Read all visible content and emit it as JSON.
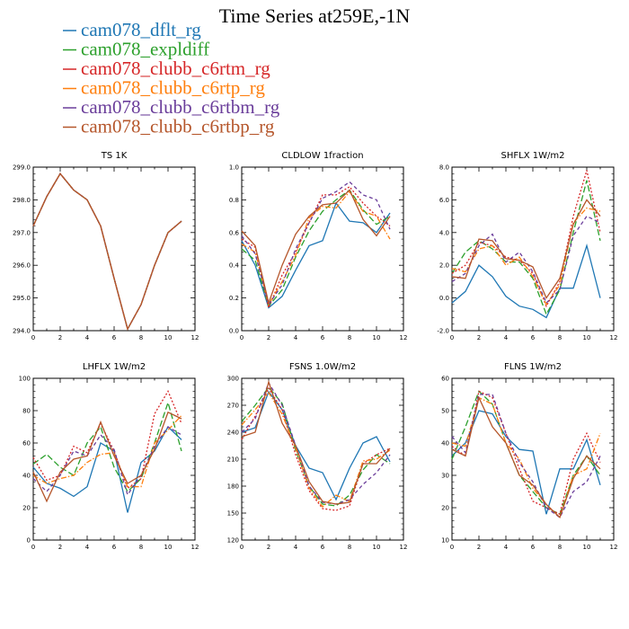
{
  "figure": {
    "title": "Time Series at259E,-1N"
  },
  "legend": [
    {
      "name": "cam078_dflt_rg",
      "color": "#1f77b4",
      "dash": "solid"
    },
    {
      "name": "cam078_expldiff",
      "color": "#2ca02c",
      "dash": "longdash"
    },
    {
      "name": "cam078_clubb_c6rtm_rg",
      "color": "#d62728",
      "dash": "dot"
    },
    {
      "name": "cam078_clubb_c6rtp_rg",
      "color": "#ff7f0e",
      "dash": "dashdot"
    },
    {
      "name": "cam078_clubb_c6rtbm_rg",
      "color": "#6a3d9a",
      "dash": "shortdash"
    },
    {
      "name": "cam078_clubb_c6rtbp_rg",
      "color": "#b5562b",
      "dash": "solid"
    }
  ],
  "chart_data": [
    {
      "type": "line",
      "title": "TS   1K",
      "x": [
        0,
        1,
        2,
        3,
        4,
        5,
        6,
        7,
        8,
        9,
        10,
        11
      ],
      "xlim": [
        0,
        12
      ],
      "xticks": [
        "0",
        "2",
        "4",
        "6",
        "8",
        "10",
        "12"
      ],
      "ylim": [
        294.0,
        299.0
      ],
      "yticks": [
        "294.0",
        "295.0",
        "296.0",
        "297.0",
        "298.0",
        "299.0"
      ],
      "series": [
        {
          "name": "cam078_dflt_rg",
          "values": [
            297.2,
            298.1,
            298.8,
            298.3,
            298.0,
            297.2,
            295.6,
            294.05,
            294.8,
            296.0,
            297.0,
            297.35
          ]
        },
        {
          "name": "cam078_expldiff",
          "values": [
            297.2,
            298.1,
            298.8,
            298.3,
            298.0,
            297.2,
            295.6,
            294.05,
            294.8,
            296.0,
            297.0,
            297.35
          ]
        },
        {
          "name": "cam078_clubb_c6rtm_rg",
          "values": [
            297.2,
            298.1,
            298.8,
            298.3,
            298.0,
            297.2,
            295.6,
            294.05,
            294.8,
            296.0,
            297.0,
            297.35
          ]
        },
        {
          "name": "cam078_clubb_c6rtp_rg",
          "values": [
            297.2,
            298.1,
            298.8,
            298.3,
            298.0,
            297.2,
            295.6,
            294.05,
            294.8,
            296.0,
            297.0,
            297.35
          ]
        },
        {
          "name": "cam078_clubb_c6rtbm_rg",
          "values": [
            297.2,
            298.1,
            298.8,
            298.3,
            298.0,
            297.2,
            295.6,
            294.05,
            294.8,
            296.0,
            297.0,
            297.35
          ]
        },
        {
          "name": "cam078_clubb_c6rtbp_rg",
          "values": [
            297.2,
            298.1,
            298.8,
            298.3,
            298.0,
            297.2,
            295.6,
            294.05,
            294.8,
            296.0,
            297.0,
            297.35
          ]
        }
      ]
    },
    {
      "type": "line",
      "title": "CLDLOW   1fraction",
      "x": [
        0,
        1,
        2,
        3,
        4,
        5,
        6,
        7,
        8,
        9,
        10,
        11
      ],
      "xlim": [
        0,
        12
      ],
      "xticks": [
        "0",
        "2",
        "4",
        "6",
        "8",
        "10",
        "12"
      ],
      "ylim": [
        0.0,
        1.0
      ],
      "yticks": [
        "0.0",
        "0.2",
        "0.4",
        "0.6",
        "0.8",
        "1.0"
      ],
      "series": [
        {
          "name": "cam078_dflt_rg",
          "values": [
            0.55,
            0.4,
            0.14,
            0.21,
            0.37,
            0.52,
            0.55,
            0.78,
            0.67,
            0.66,
            0.6,
            0.72
          ]
        },
        {
          "name": "cam078_expldiff",
          "values": [
            0.5,
            0.43,
            0.15,
            0.25,
            0.45,
            0.61,
            0.73,
            0.8,
            0.86,
            0.74,
            0.65,
            0.7
          ]
        },
        {
          "name": "cam078_clubb_c6rtm_rg",
          "values": [
            0.56,
            0.51,
            0.14,
            0.34,
            0.48,
            0.66,
            0.83,
            0.83,
            0.88,
            0.78,
            0.7,
            0.64
          ]
        },
        {
          "name": "cam078_clubb_c6rtp_rg",
          "values": [
            0.53,
            0.48,
            0.16,
            0.3,
            0.46,
            0.69,
            0.76,
            0.75,
            0.85,
            0.73,
            0.7,
            0.56
          ]
        },
        {
          "name": "cam078_clubb_c6rtbm_rg",
          "values": [
            0.58,
            0.47,
            0.16,
            0.28,
            0.5,
            0.66,
            0.81,
            0.85,
            0.91,
            0.83,
            0.8,
            0.62
          ]
        },
        {
          "name": "cam078_clubb_c6rtbp_rg",
          "values": [
            0.61,
            0.52,
            0.17,
            0.4,
            0.59,
            0.7,
            0.77,
            0.78,
            0.86,
            0.68,
            0.58,
            0.7
          ]
        }
      ]
    },
    {
      "type": "line",
      "title": "SHFLX   1W/m2",
      "x": [
        0,
        1,
        2,
        3,
        4,
        5,
        6,
        7,
        8,
        9,
        10,
        11
      ],
      "xlim": [
        0,
        12
      ],
      "xticks": [
        "0",
        "2",
        "4",
        "6",
        "8",
        "10",
        "12"
      ],
      "ylim": [
        -2.0,
        8.0
      ],
      "yticks": [
        "-2.0",
        "0.0",
        "2.0",
        "4.0",
        "6.0",
        "8.0"
      ],
      "series": [
        {
          "name": "cam078_dflt_rg",
          "values": [
            -0.3,
            0.4,
            2.0,
            1.3,
            0.1,
            -0.5,
            -0.7,
            -1.2,
            0.6,
            0.6,
            3.2,
            0.0
          ]
        },
        {
          "name": "cam078_expldiff",
          "values": [
            1.5,
            2.8,
            3.5,
            3.0,
            2.2,
            2.2,
            1.2,
            -1.0,
            0.5,
            4.0,
            7.2,
            3.5
          ]
        },
        {
          "name": "cam078_clubb_c6rtm_rg",
          "values": [
            1.5,
            2.0,
            3.4,
            3.2,
            2.5,
            2.3,
            1.5,
            -0.5,
            1.0,
            5.0,
            7.8,
            4.0
          ]
        },
        {
          "name": "cam078_clubb_c6rtp_rg",
          "values": [
            1.8,
            1.6,
            3.0,
            3.2,
            2.0,
            2.5,
            1.3,
            -0.4,
            0.8,
            4.6,
            5.5,
            5.3
          ]
        },
        {
          "name": "cam078_clubb_c6rtbm_rg",
          "values": [
            1.0,
            1.5,
            3.2,
            3.9,
            2.2,
            2.8,
            1.6,
            -0.3,
            0.5,
            3.8,
            5.0,
            4.6
          ]
        },
        {
          "name": "cam078_clubb_c6rtbp_rg",
          "values": [
            1.3,
            1.2,
            3.6,
            3.5,
            2.4,
            2.3,
            1.9,
            0.0,
            1.2,
            4.5,
            6.0,
            5.0
          ]
        }
      ]
    },
    {
      "type": "line",
      "title": "LHFLX   1W/m2",
      "x": [
        0,
        1,
        2,
        3,
        4,
        5,
        6,
        7,
        8,
        9,
        10,
        11
      ],
      "xlim": [
        0,
        12
      ],
      "xticks": [
        "0",
        "2",
        "4",
        "6",
        "8",
        "10",
        "12"
      ],
      "ylim": [
        0,
        100
      ],
      "yticks": [
        "0",
        "20",
        "40",
        "60",
        "80",
        "100"
      ],
      "series": [
        {
          "name": "cam078_dflt_rg",
          "values": [
            45,
            35,
            32,
            27,
            33,
            60,
            55,
            17,
            48,
            55,
            70,
            62
          ]
        },
        {
          "name": "cam078_expldiff",
          "values": [
            47,
            53,
            45,
            40,
            60,
            70,
            45,
            30,
            38,
            60,
            85,
            55
          ]
        },
        {
          "name": "cam078_clubb_c6rtm_rg",
          "values": [
            51,
            37,
            40,
            58,
            54,
            72,
            55,
            32,
            38,
            78,
            92,
            72
          ]
        },
        {
          "name": "cam078_clubb_c6rtp_rg",
          "values": [
            40,
            35,
            38,
            40,
            48,
            53,
            54,
            33,
            33,
            60,
            68,
            77
          ]
        },
        {
          "name": "cam078_clubb_c6rtbm_rg",
          "values": [
            38,
            30,
            40,
            55,
            52,
            65,
            56,
            28,
            40,
            58,
            70,
            65
          ]
        },
        {
          "name": "cam078_clubb_c6rtbp_rg",
          "values": [
            42,
            24,
            42,
            50,
            52,
            73,
            52,
            35,
            40,
            56,
            79,
            75
          ]
        }
      ]
    },
    {
      "type": "line",
      "title": "FSNS   1.0W/m2",
      "x": [
        0,
        1,
        2,
        3,
        4,
        5,
        6,
        7,
        8,
        9,
        10,
        11
      ],
      "xlim": [
        0,
        12
      ],
      "xticks": [
        "0",
        "2",
        "4",
        "6",
        "8",
        "10",
        "12"
      ],
      "ylim": [
        120,
        300
      ],
      "yticks": [
        "120",
        "150",
        "180",
        "210",
        "240",
        "270",
        "300"
      ],
      "series": [
        {
          "name": "cam078_dflt_rg",
          "values": [
            240,
            245,
            285,
            265,
            225,
            200,
            195,
            165,
            200,
            228,
            235,
            207
          ]
        },
        {
          "name": "cam078_expldiff",
          "values": [
            252,
            270,
            290,
            272,
            220,
            180,
            160,
            158,
            170,
            198,
            215,
            205
          ]
        },
        {
          "name": "cam078_clubb_c6rtm_rg",
          "values": [
            232,
            258,
            289,
            265,
            215,
            175,
            155,
            153,
            158,
            205,
            215,
            222
          ]
        },
        {
          "name": "cam078_clubb_c6rtp_rg",
          "values": [
            248,
            265,
            284,
            260,
            222,
            178,
            157,
            170,
            163,
            208,
            210,
            220
          ]
        },
        {
          "name": "cam078_clubb_c6rtbm_rg",
          "values": [
            240,
            255,
            295,
            270,
            225,
            180,
            162,
            160,
            165,
            182,
            195,
            215
          ]
        },
        {
          "name": "cam078_clubb_c6rtbp_rg",
          "values": [
            235,
            240,
            296,
            250,
            225,
            185,
            163,
            160,
            162,
            205,
            205,
            222
          ]
        }
      ]
    },
    {
      "type": "line",
      "title": "FLNS   1W/m2",
      "x": [
        0,
        1,
        2,
        3,
        4,
        5,
        6,
        7,
        8,
        9,
        10,
        11
      ],
      "xlim": [
        0,
        12
      ],
      "xticks": [
        "0",
        "2",
        "4",
        "6",
        "8",
        "10",
        "12"
      ],
      "ylim": [
        10,
        60
      ],
      "yticks": [
        "10",
        "20",
        "30",
        "40",
        "50",
        "60"
      ],
      "series": [
        {
          "name": "cam078_dflt_rg",
          "values": [
            36,
            40,
            50,
            49,
            42,
            38,
            37.5,
            18,
            32,
            32,
            41,
            27
          ]
        },
        {
          "name": "cam078_expldiff",
          "values": [
            35,
            45,
            56,
            52,
            40,
            30,
            25,
            20,
            18,
            30,
            36,
            30
          ]
        },
        {
          "name": "cam078_clubb_c6rtm_rg",
          "values": [
            39,
            36,
            56,
            54,
            43,
            32,
            22,
            20,
            18,
            35,
            43,
            34
          ]
        },
        {
          "name": "cam078_clubb_c6rtp_rg",
          "values": [
            40,
            39,
            54,
            52,
            40,
            35,
            26,
            21,
            17,
            30,
            32,
            43
          ]
        },
        {
          "name": "cam078_clubb_c6rtbm_rg",
          "values": [
            42,
            37,
            55,
            55,
            43,
            34,
            28,
            20,
            17,
            25,
            28,
            36
          ]
        },
        {
          "name": "cam078_clubb_c6rtbp_rg",
          "values": [
            38,
            36,
            54,
            45,
            40,
            30,
            27,
            21,
            17,
            29,
            36,
            32
          ]
        }
      ]
    }
  ]
}
